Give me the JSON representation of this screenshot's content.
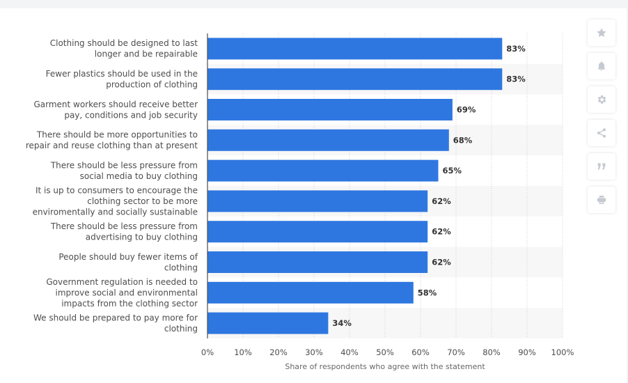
{
  "chart_data": {
    "type": "bar",
    "orientation": "horizontal",
    "categories": [
      [
        "Clothing should be designed to last",
        "longer and be repairable"
      ],
      [
        "Fewer plastics should be used in the",
        "production of clothing"
      ],
      [
        "Garment workers should receive better",
        "pay, conditions and job security"
      ],
      [
        "There should be more opportunities to",
        "repair and reuse clothing than at present"
      ],
      [
        "There should be less pressure from",
        "social media to buy clothing"
      ],
      [
        "It is up to consumers to encourage the",
        "clothing sector to be more",
        "enviromentally and socially sustainable"
      ],
      [
        "There should be less pressure from",
        "advertising to buy clothing"
      ],
      [
        "People should buy fewer items of",
        "clothing"
      ],
      [
        "Government regulation is needed to",
        "improve social and environmental",
        "impacts from the clothing sector"
      ],
      [
        "We should be prepared to pay more for",
        "clothing"
      ]
    ],
    "values": [
      83,
      83,
      69,
      68,
      65,
      62,
      62,
      62,
      58,
      34
    ],
    "value_labels": [
      "83%",
      "83%",
      "69%",
      "68%",
      "65%",
      "62%",
      "62%",
      "62%",
      "58%",
      "34%"
    ],
    "xlabel": "Share of respondents who agree with the statement",
    "xlim": [
      0,
      100
    ],
    "xticks": [
      "0%",
      "10%",
      "20%",
      "30%",
      "40%",
      "50%",
      "60%",
      "70%",
      "80%",
      "90%",
      "100%"
    ],
    "bar_color": "#2f77e0",
    "grid": true
  },
  "sidebar": {
    "buttons": [
      {
        "icon": "star-icon"
      },
      {
        "icon": "bell-icon"
      },
      {
        "icon": "gear-icon"
      },
      {
        "icon": "share-icon"
      },
      {
        "icon": "quote-icon"
      },
      {
        "icon": "print-icon"
      }
    ]
  }
}
